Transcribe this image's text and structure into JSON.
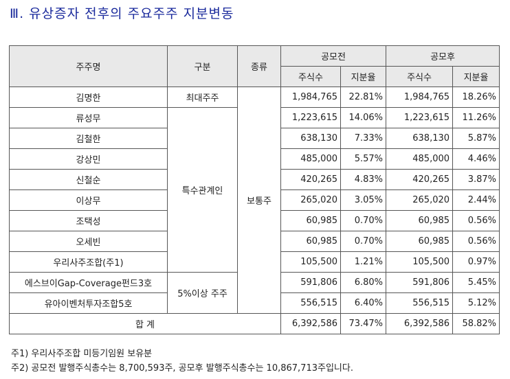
{
  "title": "Ⅲ. 유상증자 전후의 주요주주 지분변동",
  "headers": {
    "name": "주주명",
    "category": "구분",
    "type": "종류",
    "before": "공모전",
    "after": "공모후",
    "shares": "주식수",
    "ratio": "지분율"
  },
  "rows": [
    {
      "name": "김명한",
      "b_shares": "1,984,765",
      "b_ratio": "22.81%",
      "a_shares": "1,984,765",
      "a_ratio": "18.26%"
    },
    {
      "name": "류성무",
      "b_shares": "1,223,615",
      "b_ratio": "14.06%",
      "a_shares": "1,223,615",
      "a_ratio": "11.26%"
    },
    {
      "name": "김철한",
      "b_shares": "638,130",
      "b_ratio": "7.33%",
      "a_shares": "638,130",
      "a_ratio": "5.87%"
    },
    {
      "name": "강상민",
      "b_shares": "485,000",
      "b_ratio": "5.57%",
      "a_shares": "485,000",
      "a_ratio": "4.46%"
    },
    {
      "name": "신철순",
      "b_shares": "420,265",
      "b_ratio": "4.83%",
      "a_shares": "420,265",
      "a_ratio": "3.87%"
    },
    {
      "name": "이상무",
      "b_shares": "265,020",
      "b_ratio": "3.05%",
      "a_shares": "265,020",
      "a_ratio": "2.44%"
    },
    {
      "name": "조택성",
      "b_shares": "60,985",
      "b_ratio": "0.70%",
      "a_shares": "60,985",
      "a_ratio": "0.56%"
    },
    {
      "name": "오세빈",
      "b_shares": "60,985",
      "b_ratio": "0.70%",
      "a_shares": "60,985",
      "a_ratio": "0.56%"
    },
    {
      "name": "우리사주조합(주1)",
      "b_shares": "105,500",
      "b_ratio": "1.21%",
      "a_shares": "105,500",
      "a_ratio": "0.97%"
    },
    {
      "name": "에스브이Gap-Coverage펀드3호",
      "b_shares": "591,806",
      "b_ratio": "6.80%",
      "a_shares": "591,806",
      "a_ratio": "5.45%"
    },
    {
      "name": "유아이벤처투자조합5호",
      "b_shares": "556,515",
      "b_ratio": "6.40%",
      "a_shares": "556,515",
      "a_ratio": "5.12%"
    }
  ],
  "groups": {
    "largest": "최대주주",
    "related": "특수관계인",
    "over5": "5%이상 주주",
    "stock_type": "보통주"
  },
  "total": {
    "label": "합 계",
    "b_shares": "6,392,586",
    "b_ratio": "73.47%",
    "a_shares": "6,392,586",
    "a_ratio": "58.82%"
  },
  "notes": [
    "주1) 우리사주조합 미등기임원 보유분",
    "주2) 공모전 발행주식총수는 8,700,593주, 공모후 발행주식총수는 10,867,713주입니다."
  ]
}
